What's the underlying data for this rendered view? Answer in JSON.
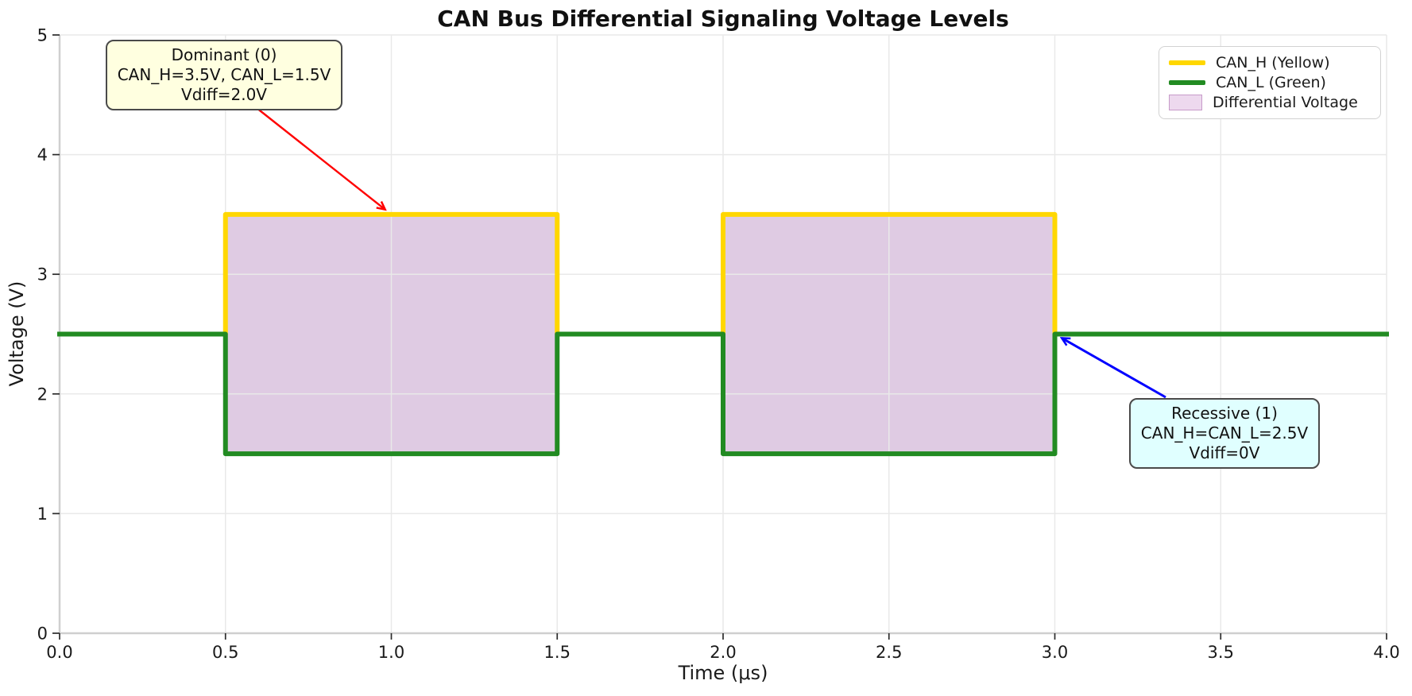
{
  "chart_data": {
    "type": "line",
    "title": "CAN Bus Differential Signaling Voltage Levels",
    "xlabel": "Time (μs)",
    "ylabel": "Voltage (V)",
    "xlim": [
      0.0,
      4.0
    ],
    "ylim": [
      0,
      5
    ],
    "xticks": [
      0.0,
      0.5,
      1.0,
      1.5,
      2.0,
      2.5,
      3.0,
      3.5,
      4.0
    ],
    "xtick_labels": [
      "0.0",
      "0.5",
      "1.0",
      "1.5",
      "2.0",
      "2.5",
      "3.0",
      "3.5",
      "4.0"
    ],
    "yticks": [
      0,
      1,
      2,
      3,
      4,
      5
    ],
    "ytick_labels": [
      "0",
      "1",
      "2",
      "3",
      "4",
      "5"
    ],
    "grid": true,
    "legend_position": "upper right",
    "series": [
      {
        "name": "CAN_H (Yellow)",
        "color": "#FFD700",
        "points": [
          [
            0.0,
            2.5
          ],
          [
            0.5,
            2.5
          ],
          [
            0.5,
            3.5
          ],
          [
            1.5,
            3.5
          ],
          [
            1.5,
            2.5
          ],
          [
            2.0,
            2.5
          ],
          [
            2.0,
            3.5
          ],
          [
            3.0,
            3.5
          ],
          [
            3.0,
            2.5
          ],
          [
            4.0,
            2.5
          ]
        ]
      },
      {
        "name": "CAN_L (Green)",
        "color": "#228B22",
        "points": [
          [
            0.0,
            2.5
          ],
          [
            0.5,
            2.5
          ],
          [
            0.5,
            1.5
          ],
          [
            1.5,
            1.5
          ],
          [
            1.5,
            2.5
          ],
          [
            2.0,
            2.5
          ],
          [
            2.0,
            1.5
          ],
          [
            3.0,
            1.5
          ],
          [
            3.0,
            2.5
          ],
          [
            4.0,
            2.5
          ]
        ]
      }
    ],
    "fill_between": {
      "label": "Differential Voltage",
      "fill_color": "#DFCBE3",
      "between_series": [
        "CAN_H (Yellow)",
        "CAN_L (Green)"
      ]
    },
    "legend_entries": [
      "CAN_H (Yellow)",
      "CAN_L (Green)",
      "Differential Voltage"
    ],
    "annotations": [
      {
        "lines": [
          "Dominant (0)",
          "CAN_H=3.5V, CAN_L=1.5V",
          "Vdiff=2.0V"
        ],
        "target_xy": [
          1.0,
          3.5
        ],
        "box_color": "#FFFFE0",
        "arrow_color": "#FF0000"
      },
      {
        "lines": [
          "Recessive (1)",
          "CAN_H=CAN_L=2.5V",
          "Vdiff=0V"
        ],
        "target_xy": [
          3.0,
          2.5
        ],
        "box_color": "#E0FFFF",
        "arrow_color": "#0000FF"
      }
    ]
  }
}
